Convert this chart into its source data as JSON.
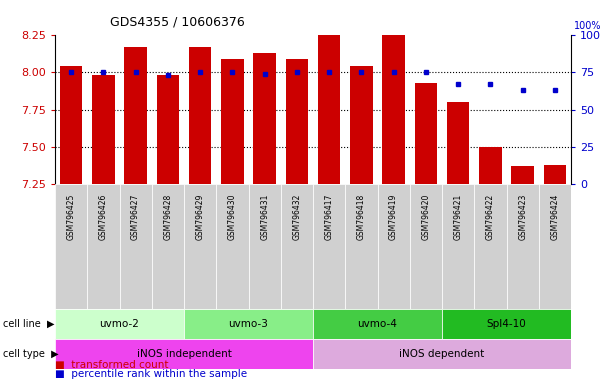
{
  "title": "GDS4355 / 10606376",
  "samples": [
    "GSM796425",
    "GSM796426",
    "GSM796427",
    "GSM796428",
    "GSM796429",
    "GSM796430",
    "GSM796431",
    "GSM796432",
    "GSM796417",
    "GSM796418",
    "GSM796419",
    "GSM796420",
    "GSM796421",
    "GSM796422",
    "GSM796423",
    "GSM796424"
  ],
  "bar_values": [
    8.04,
    7.98,
    8.17,
    7.98,
    8.17,
    8.09,
    8.13,
    8.09,
    8.25,
    8.04,
    8.25,
    7.93,
    7.8,
    7.5,
    7.37,
    7.38
  ],
  "percentile_values": [
    75,
    75,
    75,
    73,
    75,
    75,
    74,
    75,
    75,
    75,
    75,
    75,
    67,
    67,
    63,
    63
  ],
  "ylim_left": [
    7.25,
    8.25
  ],
  "ylim_right": [
    0,
    100
  ],
  "yticks_left": [
    7.25,
    7.5,
    7.75,
    8.0,
    8.25
  ],
  "yticks_right": [
    0,
    25,
    50,
    75,
    100
  ],
  "bar_color": "#cc0000",
  "dot_color": "#0000cc",
  "bar_bottom": 7.25,
  "hgrid_values": [
    7.5,
    7.75,
    8.0
  ],
  "cell_lines": [
    {
      "label": "uvmo-2",
      "start": 0,
      "end": 3,
      "color": "#ccffcc"
    },
    {
      "label": "uvmo-3",
      "start": 4,
      "end": 7,
      "color": "#88ee88"
    },
    {
      "label": "uvmo-4",
      "start": 8,
      "end": 11,
      "color": "#44cc44"
    },
    {
      "label": "Spl4-10",
      "start": 12,
      "end": 15,
      "color": "#22bb22"
    }
  ],
  "cell_types": [
    {
      "label": "iNOS independent",
      "start": 0,
      "end": 7,
      "color": "#ee44ee"
    },
    {
      "label": "iNOS dependent",
      "start": 8,
      "end": 15,
      "color": "#ddaadd"
    }
  ],
  "left_label_color": "#cc0000",
  "right_label_color": "#0000cc",
  "legend_items": [
    {
      "label": "transformed count",
      "color": "#cc0000"
    },
    {
      "label": "percentile rank within the sample",
      "color": "#0000cc"
    }
  ]
}
